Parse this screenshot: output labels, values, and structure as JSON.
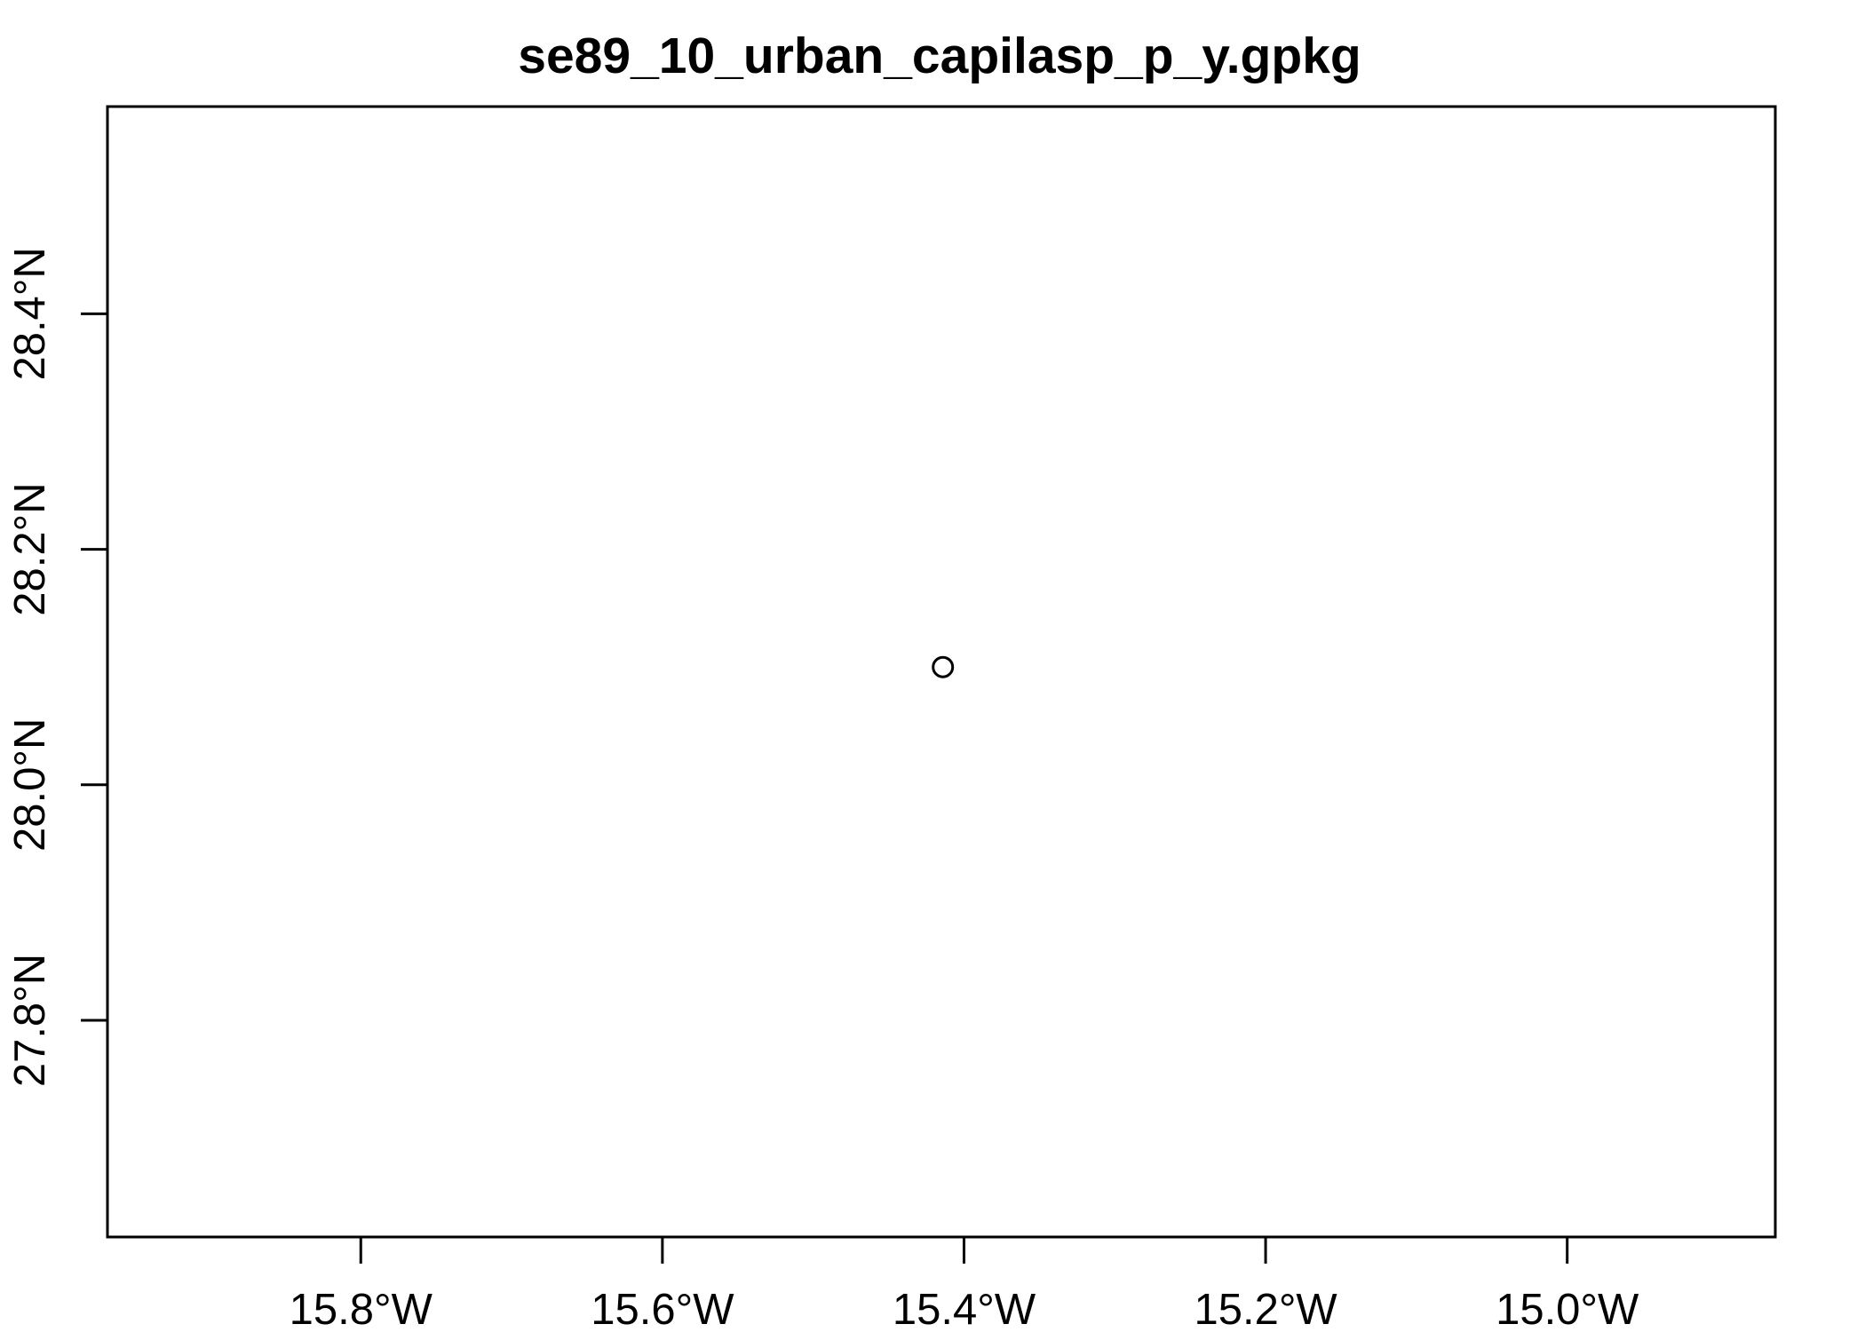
{
  "title": "se89_10_urban_capilasp_p_y.gpkg",
  "chart_data": {
    "type": "scatter",
    "title": "se89_10_urban_capilasp_p_y.gpkg",
    "xlabel": "",
    "ylabel": "",
    "xlim": [
      -15.968,
      -14.862
    ],
    "ylim": [
      27.616,
      28.576
    ],
    "x_ticks": [
      {
        "value": -15.8,
        "label": "15.8°W"
      },
      {
        "value": -15.6,
        "label": "15.6°W"
      },
      {
        "value": -15.4,
        "label": "15.4°W"
      },
      {
        "value": -15.2,
        "label": "15.2°W"
      },
      {
        "value": -15.0,
        "label": "15.0°W"
      }
    ],
    "y_ticks": [
      {
        "value": 27.8,
        "label": "27.8°N"
      },
      {
        "value": 28.0,
        "label": "28.0°N"
      },
      {
        "value": 28.2,
        "label": "28.2°N"
      },
      {
        "value": 28.4,
        "label": "28.4°N"
      }
    ],
    "points": [
      {
        "x": -15.414,
        "y": 28.1
      }
    ],
    "marker": "open-circle",
    "grid": false,
    "legend": "none",
    "colors": {
      "stroke": "#000000",
      "background": "#ffffff"
    }
  }
}
